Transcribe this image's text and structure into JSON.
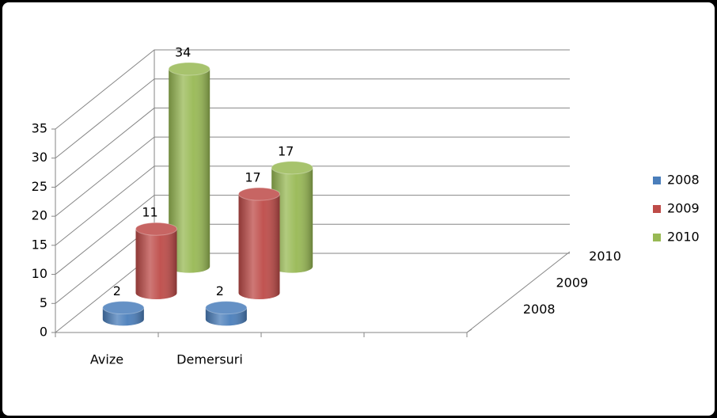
{
  "chart_data": {
    "type": "bar3d",
    "categories": [
      "Avize",
      "Demersuri",
      null,
      null
    ],
    "series": [
      {
        "name": "2008",
        "color": "#4a7ebb",
        "values": [
          2,
          2,
          null,
          null
        ]
      },
      {
        "name": "2009",
        "color": "#be4b48",
        "values": [
          11,
          17,
          null,
          null
        ]
      },
      {
        "name": "2010",
        "color": "#98b954",
        "values": [
          34,
          17,
          null,
          null
        ]
      }
    ],
    "ylim": [
      0,
      35
    ],
    "yticks": [
      0,
      5,
      10,
      15,
      20,
      25,
      30,
      35
    ],
    "grid": true,
    "legend": "right"
  }
}
